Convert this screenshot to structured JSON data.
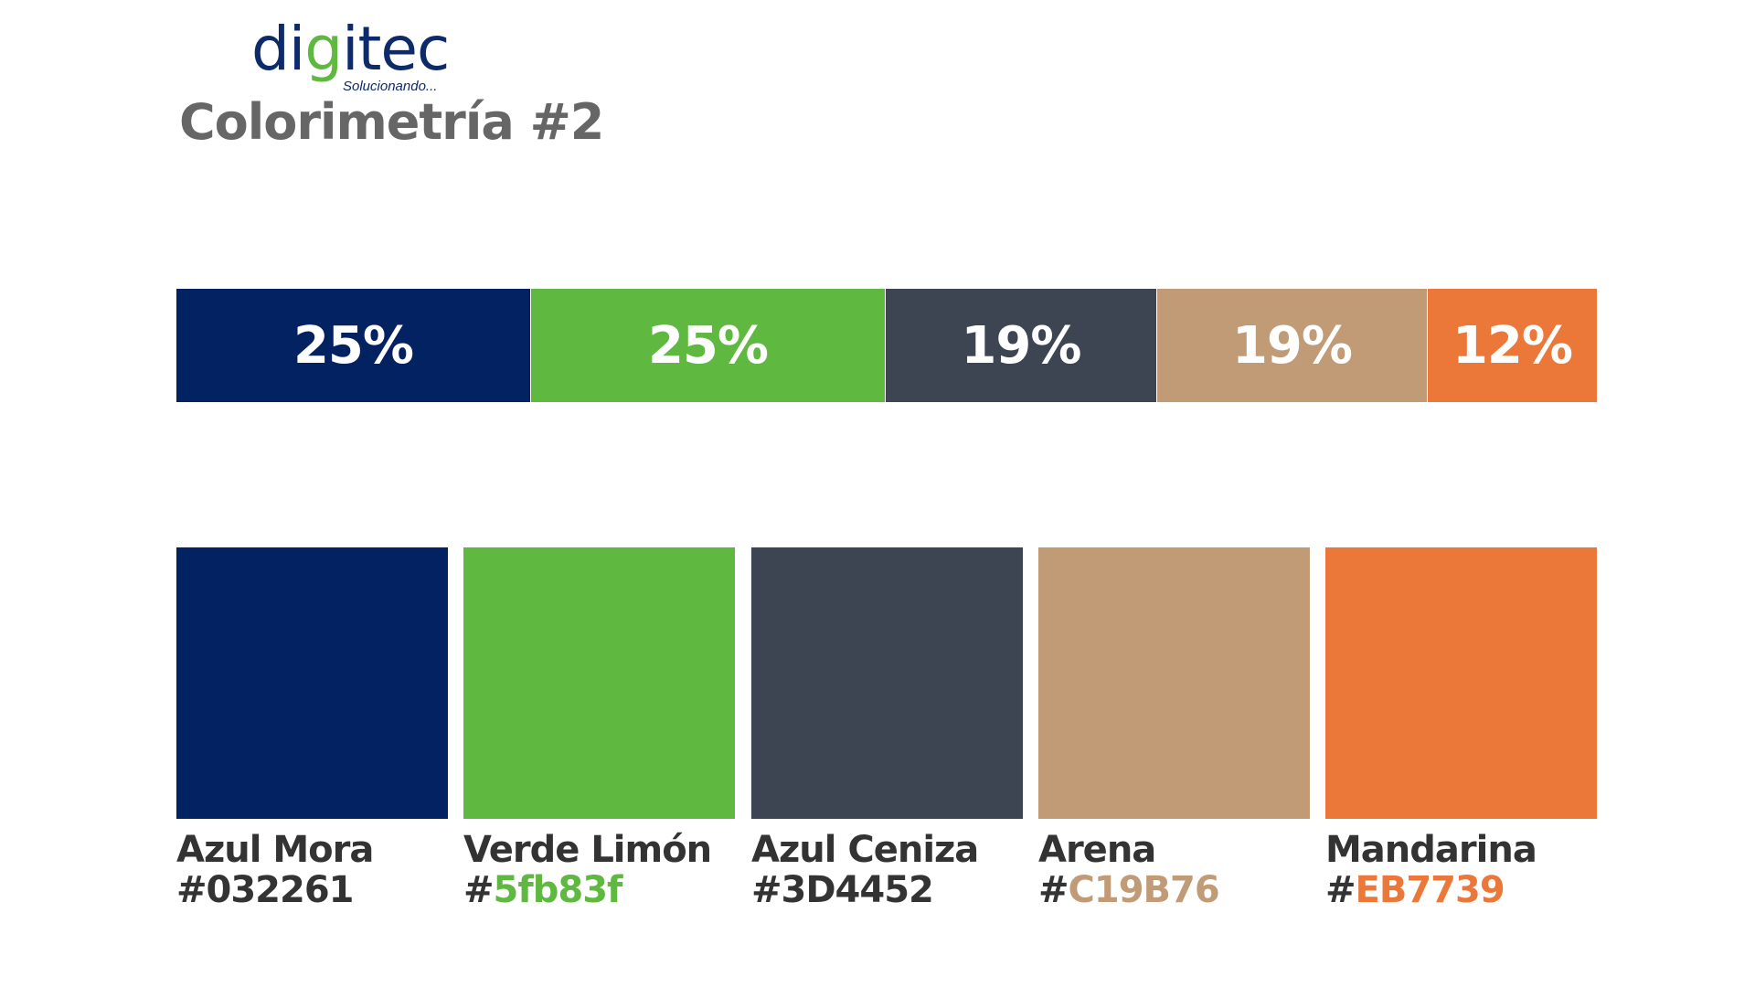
{
  "logo": {
    "word_part1": "di",
    "word_accent": "g",
    "word_part2": "itec",
    "tagline": "Solucionando..."
  },
  "title": "Colorimetría #2",
  "proportion_bar": [
    {
      "label": "25%",
      "color": "#032261"
    },
    {
      "label": "25%",
      "color": "#5fb83f"
    },
    {
      "label": "19%",
      "color": "#3D4452"
    },
    {
      "label": "19%",
      "color": "#C19B76"
    },
    {
      "label": "12%",
      "color": "#EB7739"
    }
  ],
  "swatches": [
    {
      "name": "Azul Mora",
      "hash": "#",
      "code": "032261",
      "color": "#032261",
      "code_color": "#333333"
    },
    {
      "name": "Verde Limón",
      "hash": "#",
      "code": "5fb83f",
      "color": "#5fb83f",
      "code_color": "#5fb83f"
    },
    {
      "name": "Azul Ceniza",
      "hash": "#",
      "code": "3D4452",
      "color": "#3D4452",
      "code_color": "#333333"
    },
    {
      "name": "Arena",
      "hash": "#",
      "code": "C19B76",
      "color": "#C19B76",
      "code_color": "#C19B76"
    },
    {
      "name": "Mandarina",
      "hash": "#",
      "code": "EB7739",
      "color": "#EB7739",
      "code_color": "#EB7739"
    }
  ]
}
